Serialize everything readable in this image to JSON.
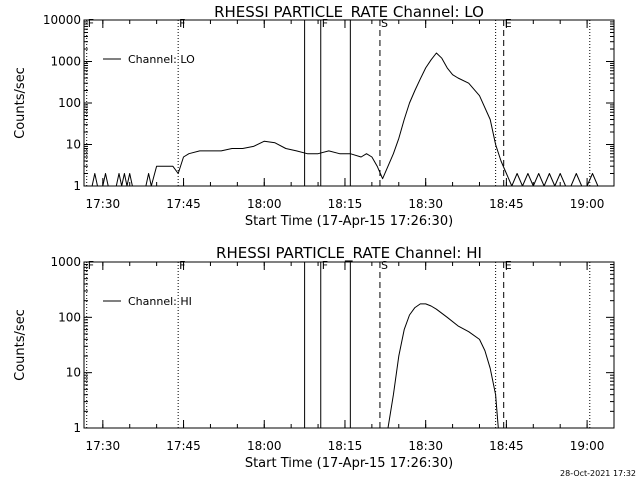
{
  "chart_data": [
    {
      "type": "line",
      "title": "RHESSI PARTICLE_RATE Channel: LO",
      "xlabel": "Start Time (17-Apr-15 17:26:30)",
      "ylabel": "Counts/sec",
      "yscale": "log",
      "ylim": [
        1,
        10000
      ],
      "y_ticks": [
        "1",
        "10",
        "100",
        "1000",
        "10000"
      ],
      "x_ticks": [
        "17:30",
        "17:45",
        "18:00",
        "18:15",
        "18:30",
        "18:45",
        "19:00"
      ],
      "legend": {
        "placement": "top-left",
        "entries": [
          "Channel: LO"
        ]
      },
      "series": [
        {
          "name": "Channel: LO",
          "x": [
            "17:27:00",
            "17:28:00",
            "17:28:30",
            "17:29:00",
            "17:30:00",
            "17:30:30",
            "17:31:00",
            "17:32:30",
            "17:33:00",
            "17:33:30",
            "17:34:00",
            "17:34:30",
            "17:35:00",
            "17:35:30",
            "17:36:00",
            "17:38:00",
            "17:38:30",
            "17:39:00",
            "17:40:00",
            "17:41:00",
            "17:42:00",
            "17:43:00",
            "17:44:00",
            "17:45:00",
            "17:46:00",
            "17:48:00",
            "17:50:00",
            "17:52:00",
            "17:54:00",
            "17:56:00",
            "17:58:00",
            "18:00:00",
            "18:02:00",
            "18:04:00",
            "18:06:00",
            "18:08:00",
            "18:10:00",
            "18:12:00",
            "18:14:00",
            "18:16:00",
            "18:18:00",
            "18:19:00",
            "18:20:00",
            "18:21:00",
            "18:22:00",
            "18:23:00",
            "18:24:00",
            "18:25:00",
            "18:26:00",
            "18:27:00",
            "18:28:00",
            "18:29:00",
            "18:30:00",
            "18:31:00",
            "18:32:00",
            "18:33:00",
            "18:34:00",
            "18:35:00",
            "18:36:00",
            "18:38:00",
            "18:40:00",
            "18:42:00",
            "18:43:00",
            "18:44:00",
            "18:45:00",
            "18:46:00",
            "18:47:00",
            "18:48:00",
            "18:49:00",
            "18:50:00",
            "18:51:00",
            "18:52:00",
            "18:53:00",
            "18:54:00",
            "18:55:00",
            "18:56:00",
            "18:57:00",
            "18:58:00",
            "18:59:00",
            "19:00:00",
            "19:01:00",
            "19:02:00"
          ],
          "values": [
            1,
            1,
            2,
            1,
            1,
            2,
            1,
            1,
            2,
            1,
            2,
            1,
            2,
            1,
            1,
            1,
            2,
            1,
            3,
            3,
            3,
            3,
            2,
            5,
            6,
            7,
            7,
            7,
            8,
            8,
            9,
            12,
            11,
            8,
            7,
            6,
            6,
            7,
            6,
            6,
            5,
            6,
            5,
            3,
            1.5,
            3,
            6,
            14,
            40,
            100,
            200,
            380,
            700,
            1100,
            1600,
            1200,
            700,
            480,
            400,
            300,
            150,
            40,
            10,
            4,
            2,
            1,
            2,
            1,
            2,
            1,
            2,
            1,
            2,
            1,
            2,
            1,
            1,
            2,
            1,
            1,
            2,
            1
          ]
        }
      ],
      "markers": [
        {
          "label": "F",
          "time": "17:27:00",
          "style": "dotted"
        },
        {
          "label": "F",
          "time": "17:44:00",
          "style": "dotted"
        },
        {
          "label": "",
          "time": "18:07:30",
          "style": "solid"
        },
        {
          "label": "F",
          "time": "18:10:30",
          "style": "solid"
        },
        {
          "label": "",
          "time": "18:16:00",
          "style": "solid"
        },
        {
          "label": "S",
          "time": "18:21:30",
          "style": "dashed"
        },
        {
          "label": "",
          "time": "18:43:00",
          "style": "dotted"
        },
        {
          "label": "E",
          "time": "18:44:30",
          "style": "dashed"
        },
        {
          "label": "",
          "time": "19:00:30",
          "style": "dotted"
        }
      ]
    },
    {
      "type": "line",
      "title": "RHESSI PARTICLE_RATE Channel: HI",
      "xlabel": "Start Time (17-Apr-15 17:26:30)",
      "ylabel": "Counts/sec",
      "yscale": "log",
      "ylim": [
        1,
        1000
      ],
      "y_ticks": [
        "1",
        "10",
        "100",
        "1000"
      ],
      "x_ticks": [
        "17:30",
        "17:45",
        "18:00",
        "18:15",
        "18:30",
        "18:45",
        "19:00"
      ],
      "legend": {
        "placement": "top-left",
        "entries": [
          "Channel: HI"
        ]
      },
      "series": [
        {
          "name": "Channel: HI",
          "x": [
            "18:23:00",
            "18:24:00",
            "18:25:00",
            "18:26:00",
            "18:27:00",
            "18:28:00",
            "18:29:00",
            "18:30:00",
            "18:31:00",
            "18:32:00",
            "18:34:00",
            "18:36:00",
            "18:38:00",
            "18:40:00",
            "18:41:00",
            "18:42:00",
            "18:43:00",
            "18:43:30"
          ],
          "values": [
            1,
            4,
            20,
            60,
            110,
            150,
            175,
            175,
            160,
            140,
            100,
            70,
            55,
            40,
            25,
            12,
            4,
            1
          ]
        }
      ],
      "markers": [
        {
          "label": "F",
          "time": "17:27:00",
          "style": "dotted"
        },
        {
          "label": "F",
          "time": "17:44:00",
          "style": "dotted"
        },
        {
          "label": "",
          "time": "18:07:30",
          "style": "solid"
        },
        {
          "label": "F",
          "time": "18:10:30",
          "style": "solid"
        },
        {
          "label": "",
          "time": "18:16:00",
          "style": "solid"
        },
        {
          "label": "S",
          "time": "18:21:30",
          "style": "dashed"
        },
        {
          "label": "",
          "time": "18:43:00",
          "style": "dotted"
        },
        {
          "label": "E",
          "time": "18:44:30",
          "style": "dashed"
        },
        {
          "label": "",
          "time": "19:00:30",
          "style": "dotted"
        }
      ]
    }
  ],
  "footer": {
    "timestamp": "28-Oct-2021 17:32"
  }
}
